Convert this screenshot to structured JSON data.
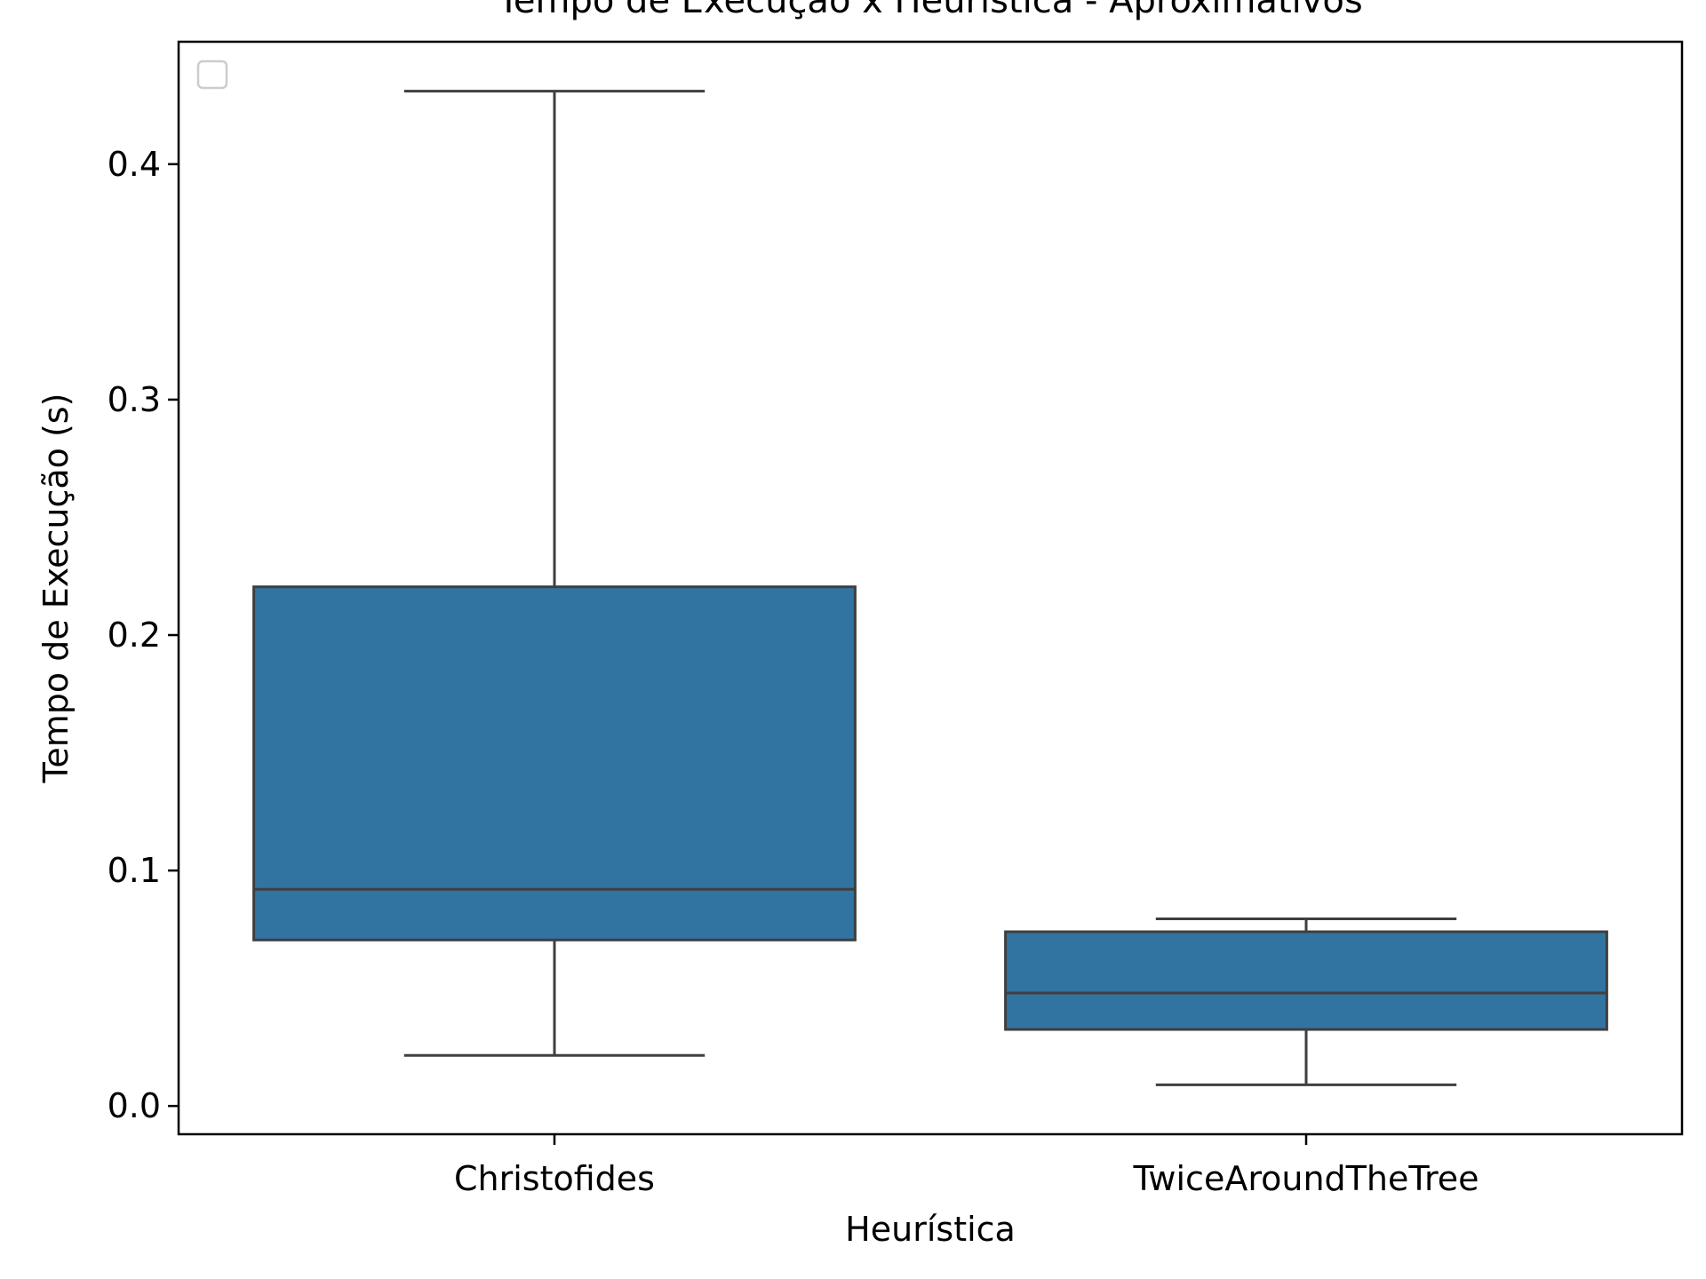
{
  "chart_data": {
    "type": "box",
    "title": "Tempo de Execução x Heurística - Aproximativos",
    "xlabel": "Heurística",
    "ylabel": "Tempo de Execução (s)",
    "ylim": [
      -0.012,
      0.452
    ],
    "yticks": [
      0.0,
      0.1,
      0.2,
      0.3,
      0.4
    ],
    "ytick_labels": [
      "0.0",
      "0.1",
      "0.2",
      "0.3",
      "0.4"
    ],
    "grid": false,
    "legend": "top-left (empty)",
    "box_color": "#3274a1",
    "line_color": "#3f3f3f",
    "categories": [
      "Christofides",
      "TwiceAroundTheTree"
    ],
    "boxes": [
      {
        "category": "Christofides",
        "whisker_low": 0.0215,
        "q1": 0.0705,
        "median": 0.092,
        "q3": 0.2205,
        "whisker_high": 0.431
      },
      {
        "category": "TwiceAroundTheTree",
        "whisker_low": 0.009,
        "q1": 0.0325,
        "median": 0.048,
        "q3": 0.074,
        "whisker_high": 0.0795
      }
    ]
  }
}
